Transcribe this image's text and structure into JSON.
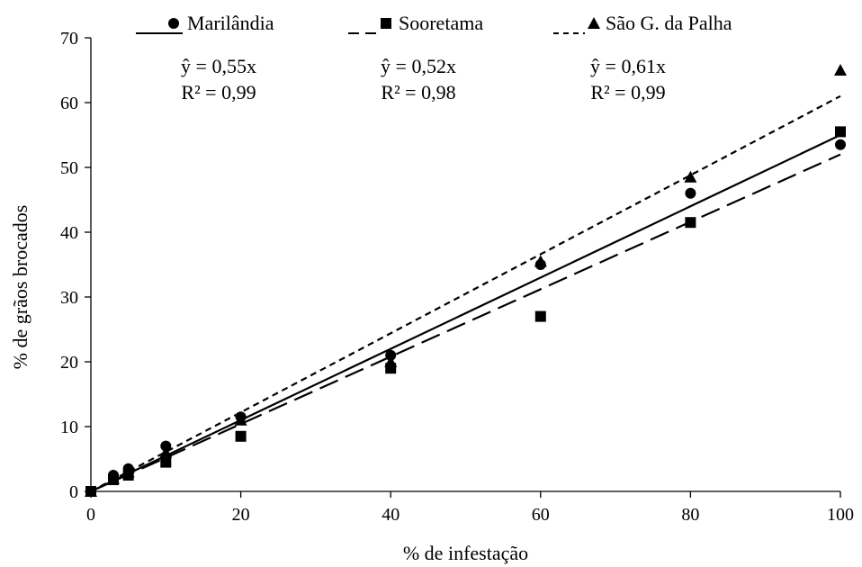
{
  "chart_data": {
    "type": "scatter",
    "xlabel": "% de infestação",
    "ylabel": "% de grãos brocados",
    "xlim": [
      0,
      100
    ],
    "ylim": [
      0,
      70
    ],
    "xticks": [
      "0",
      "20",
      "40",
      "60",
      "80",
      "100"
    ],
    "yticks": [
      "0",
      "10",
      "20",
      "30",
      "40",
      "50",
      "60",
      "70"
    ],
    "grid": false,
    "legend_position": "top",
    "series": [
      {
        "name": "Marilândia",
        "marker": "circle",
        "line_style": "solid",
        "slope": 0.55,
        "equation": "ŷ = 0,55x",
        "r2": "R² = 0,99",
        "points": [
          [
            0,
            0
          ],
          [
            3,
            2.5
          ],
          [
            5,
            3.5
          ],
          [
            10,
            7
          ],
          [
            20,
            11.5
          ],
          [
            40,
            21
          ],
          [
            60,
            35
          ],
          [
            80,
            46
          ],
          [
            100,
            53.5
          ]
        ]
      },
      {
        "name": "Sooretama",
        "marker": "square",
        "line_style": "long-dash",
        "slope": 0.52,
        "equation": "ŷ = 0,52x",
        "r2": "R² = 0,98",
        "points": [
          [
            0,
            0
          ],
          [
            3,
            1.8
          ],
          [
            5,
            2.5
          ],
          [
            10,
            4.5
          ],
          [
            20,
            8.5
          ],
          [
            40,
            19
          ],
          [
            60,
            27
          ],
          [
            80,
            41.5
          ],
          [
            100,
            55.5
          ]
        ]
      },
      {
        "name": "São G. da Palha",
        "marker": "triangle",
        "line_style": "short-dash",
        "slope": 0.61,
        "equation": "ŷ = 0,61x",
        "r2": "R² = 0,99",
        "points": [
          [
            0,
            0
          ],
          [
            3,
            2
          ],
          [
            5,
            3
          ],
          [
            10,
            6
          ],
          [
            20,
            11
          ],
          [
            40,
            20
          ],
          [
            60,
            35.5
          ],
          [
            80,
            48.5
          ],
          [
            100,
            65
          ]
        ]
      }
    ]
  }
}
